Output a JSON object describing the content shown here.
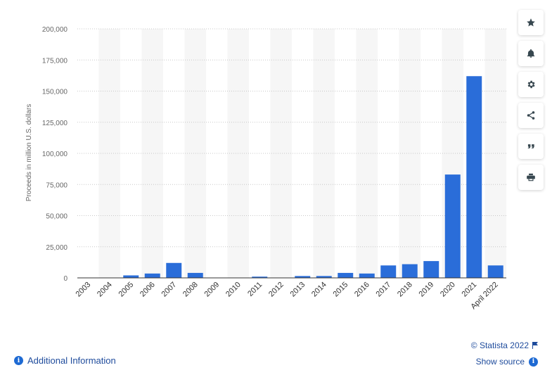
{
  "chart_data": {
    "type": "bar",
    "categories": [
      "2003",
      "2004",
      "2005",
      "2006",
      "2007",
      "2008",
      "2009",
      "2010",
      "2011",
      "2012",
      "2013",
      "2014",
      "2015",
      "2016",
      "2017",
      "2018",
      "2019",
      "2020",
      "2021",
      "April 2022"
    ],
    "values": [
      0,
      0,
      2000,
      3500,
      12000,
      4000,
      0,
      0,
      1000,
      0,
      1500,
      1500,
      4000,
      3500,
      10000,
      11000,
      13500,
      83000,
      162000,
      10000
    ],
    "ylabel": "Proceeds in million U.S. dollars",
    "xlabel": "",
    "ylim": [
      0,
      200000
    ],
    "yticks": [
      "0",
      "25,000",
      "50,000",
      "75,000",
      "100,000",
      "125,000",
      "150,000",
      "175,000",
      "200,000"
    ],
    "bar_color": "#2a6dd9",
    "grid": true
  },
  "sidebar": {
    "icons": [
      "star-icon",
      "bell-icon",
      "gear-icon",
      "share-icon",
      "quote-icon",
      "print-icon"
    ]
  },
  "footer": {
    "additional_info": "Additional Information",
    "credit": "© Statista 2022",
    "show_source": "Show source",
    "info_glyph": "i"
  }
}
